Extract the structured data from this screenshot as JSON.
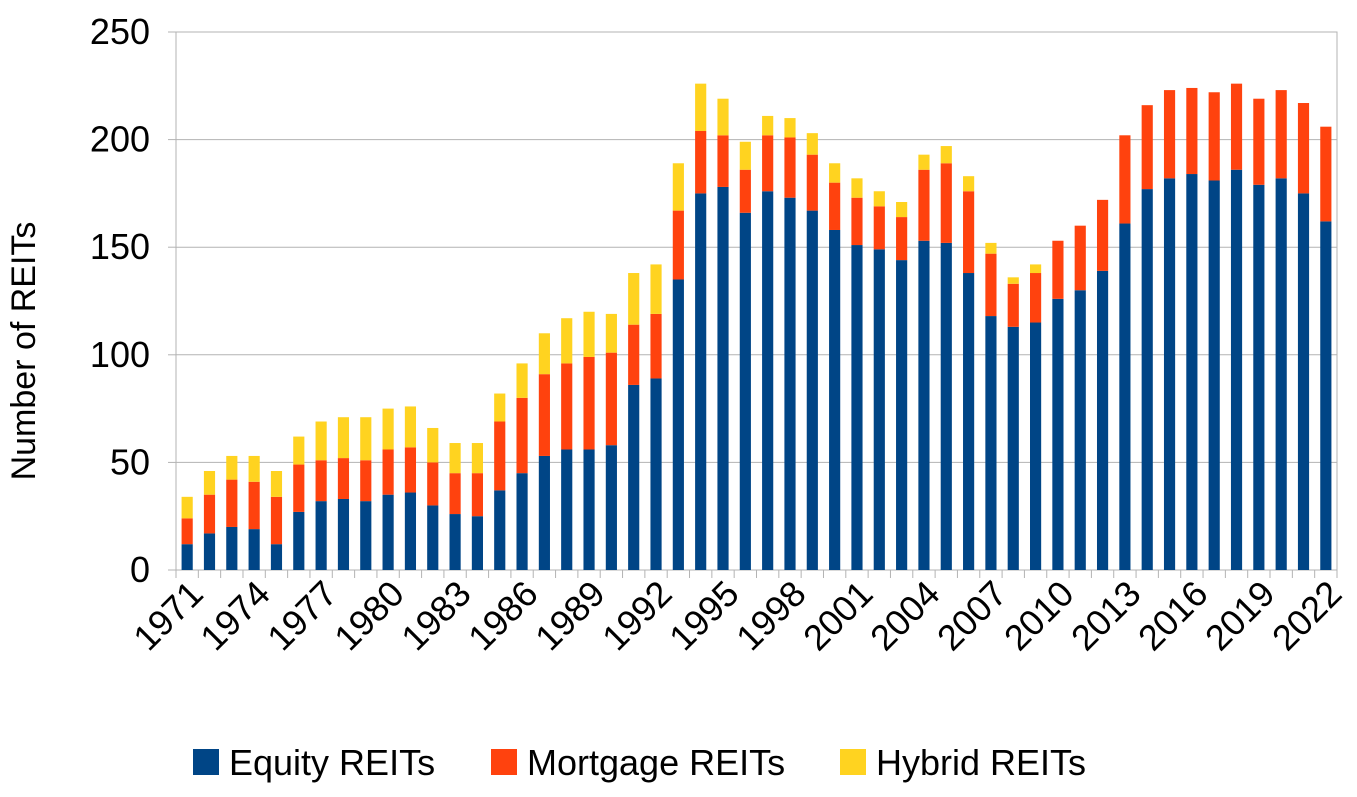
{
  "chart_data": {
    "type": "bar",
    "stacked": true,
    "ylabel": "Number of REITs",
    "xlabel": "",
    "ylim": [
      0,
      250
    ],
    "y_ticks": [
      "0",
      "50",
      "100",
      "150",
      "200",
      "250"
    ],
    "grid": true,
    "legend_position": "bottom",
    "categories": [
      "1971",
      "1972",
      "1973",
      "1974",
      "1975",
      "1976",
      "1977",
      "1978",
      "1979",
      "1980",
      "1981",
      "1982",
      "1983",
      "1984",
      "1985",
      "1986",
      "1987",
      "1988",
      "1989",
      "1990",
      "1991",
      "1992",
      "1993",
      "1994",
      "1995",
      "1996",
      "1997",
      "1998",
      "1999",
      "2000",
      "2001",
      "2002",
      "2003",
      "2004",
      "2005",
      "2006",
      "2007",
      "2008",
      "2009",
      "2010",
      "2011",
      "2012",
      "2013",
      "2014",
      "2015",
      "2016",
      "2017",
      "2018",
      "2019",
      "2020",
      "2021",
      "2022"
    ],
    "x_tick_labels": [
      "1971",
      "1974",
      "1977",
      "1980",
      "1983",
      "1986",
      "1989",
      "1992",
      "1995",
      "1998",
      "2001",
      "2004",
      "2007",
      "2010",
      "2013",
      "2016",
      "2019",
      "2022"
    ],
    "series": [
      {
        "name": "Equity REITs",
        "color": "#004586",
        "values": [
          12,
          17,
          20,
          19,
          12,
          27,
          32,
          33,
          32,
          35,
          36,
          30,
          26,
          25,
          37,
          45,
          53,
          56,
          56,
          58,
          86,
          89,
          135,
          175,
          178,
          166,
          176,
          173,
          167,
          158,
          151,
          149,
          144,
          153,
          152,
          138,
          118,
          113,
          115,
          126,
          130,
          139,
          161,
          177,
          182,
          184,
          181,
          186,
          179,
          182,
          175,
          162
        ]
      },
      {
        "name": "Mortgage REITs",
        "color": "#ff420e",
        "values": [
          12,
          18,
          22,
          22,
          22,
          22,
          19,
          19,
          19,
          21,
          21,
          20,
          19,
          20,
          32,
          35,
          38,
          40,
          43,
          43,
          28,
          30,
          32,
          29,
          24,
          20,
          26,
          28,
          26,
          22,
          22,
          20,
          20,
          33,
          37,
          38,
          29,
          20,
          23,
          27,
          30,
          33,
          41,
          39,
          41,
          40,
          41,
          40,
          40,
          41,
          42,
          44
        ]
      },
      {
        "name": "Hybrid REITs",
        "color": "#ffd320",
        "values": [
          10,
          11,
          11,
          12,
          12,
          13,
          18,
          19,
          20,
          19,
          19,
          16,
          14,
          14,
          13,
          16,
          19,
          21,
          21,
          18,
          24,
          23,
          22,
          22,
          17,
          13,
          9,
          9,
          10,
          9,
          9,
          7,
          7,
          7,
          8,
          7,
          5,
          3,
          4,
          0,
          0,
          0,
          0,
          0,
          0,
          0,
          0,
          0,
          0,
          0,
          0,
          0
        ]
      }
    ]
  }
}
